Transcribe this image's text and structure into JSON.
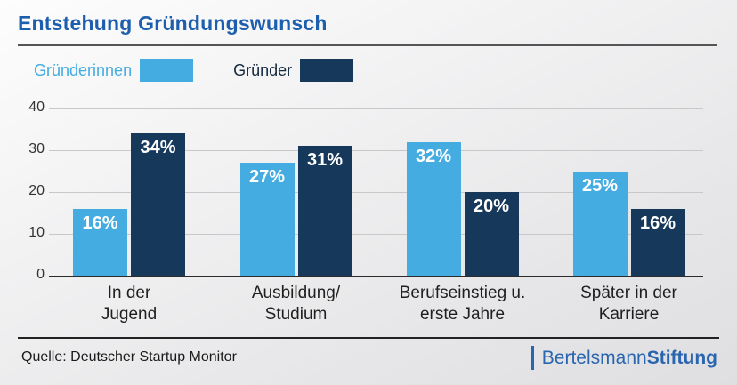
{
  "title": "Entstehung Gründungswunsch",
  "legend": [
    {
      "label": "Gründerinnen",
      "color": "#45ace2"
    },
    {
      "label": "Gründer",
      "color": "#16395b"
    }
  ],
  "chart_data": {
    "type": "bar",
    "title": "Entstehung Gründungswunsch",
    "categories": [
      "In der\nJugend",
      "Ausbildung/\nStudium",
      "Berufseinstieg u.\nerste Jahre",
      "Später in der\nKarriere"
    ],
    "series": [
      {
        "name": "Gründerinnen",
        "color": "#45ace2",
        "values": [
          16,
          27,
          32,
          25
        ]
      },
      {
        "name": "Gründer",
        "color": "#16395b",
        "values": [
          34,
          31,
          20,
          16
        ]
      }
    ],
    "value_suffix": "%",
    "xlabel": "",
    "ylabel": "",
    "ylim": [
      0,
      40
    ],
    "yticks": [
      0,
      10,
      20,
      30,
      40
    ],
    "grid": true,
    "legend_position": "top-left"
  },
  "footer": {
    "source": "Quelle: Deutscher Startup Monitor",
    "logo": {
      "text_regular": "Bertelsmann",
      "text_bold": "Stiftung"
    }
  }
}
